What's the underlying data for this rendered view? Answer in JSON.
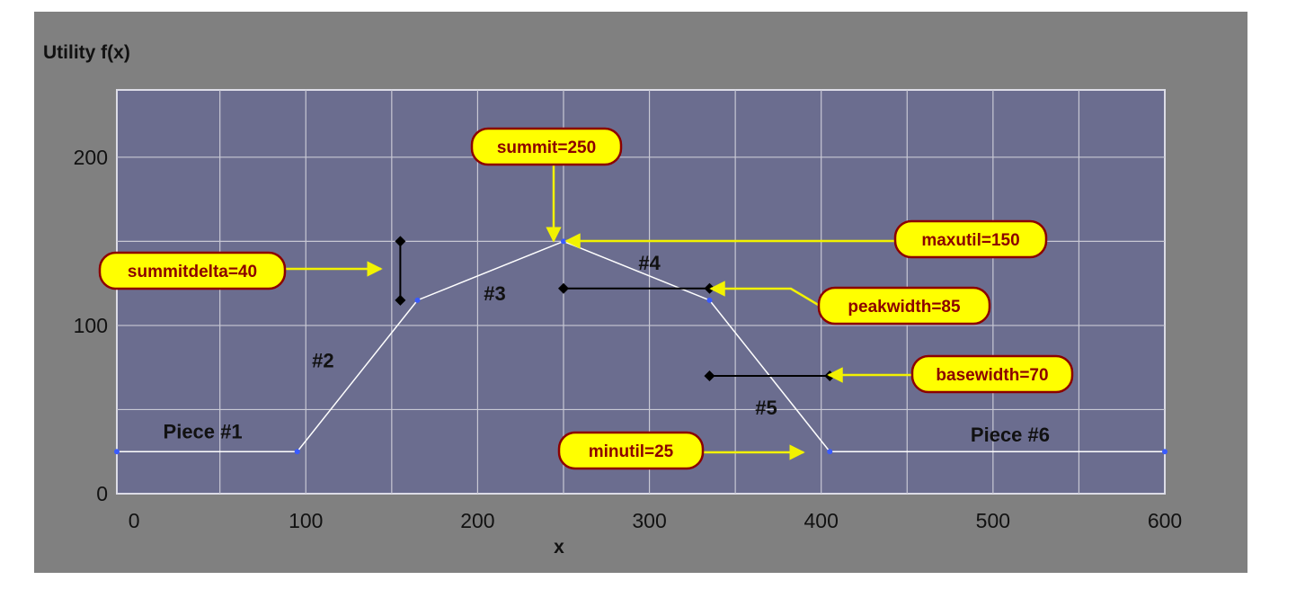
{
  "chart_data": {
    "type": "line",
    "title": "",
    "ylabel": "Utility f(x)",
    "xlabel": "x",
    "xlim": [
      -10,
      600
    ],
    "ylim": [
      0,
      200
    ],
    "x_ticks": [
      0,
      100,
      200,
      300,
      400,
      500,
      600
    ],
    "y_ticks": [
      0,
      100,
      200
    ],
    "grid": true,
    "series": [
      {
        "x": [
          -10,
          95,
          165,
          250,
          335,
          405,
          600
        ],
        "y": [
          25,
          25,
          115,
          150,
          115,
          25,
          25
        ]
      }
    ],
    "piece_labels": [
      {
        "text": "Piece #1",
        "x": 40,
        "y": 33
      },
      {
        "text": "#2",
        "x": 110,
        "y": 75
      },
      {
        "text": "#3",
        "x": 210,
        "y": 115
      },
      {
        "text": "#4",
        "x": 300,
        "y": 133
      },
      {
        "text": "#5",
        "x": 368,
        "y": 47
      },
      {
        "text": "Piece #6",
        "x": 510,
        "y": 31
      }
    ],
    "annotations": [
      {
        "text": "summit=250"
      },
      {
        "text": "maxutil=150"
      },
      {
        "text": "summitdelta=40"
      },
      {
        "text": "peakwidth=85"
      },
      {
        "text": "basewidth=70"
      },
      {
        "text": "minutil=25"
      }
    ],
    "colors": {
      "figure_bg": "#808080",
      "plot_bg": "#6b6d8f",
      "grid": "#c8c8d4",
      "line": "#ffffff",
      "points": "#3a5bff",
      "callout_fill": "#ffff00",
      "callout_border": "#8b0000",
      "callout_text": "#8b0000",
      "arrow": "#f2f200"
    }
  }
}
